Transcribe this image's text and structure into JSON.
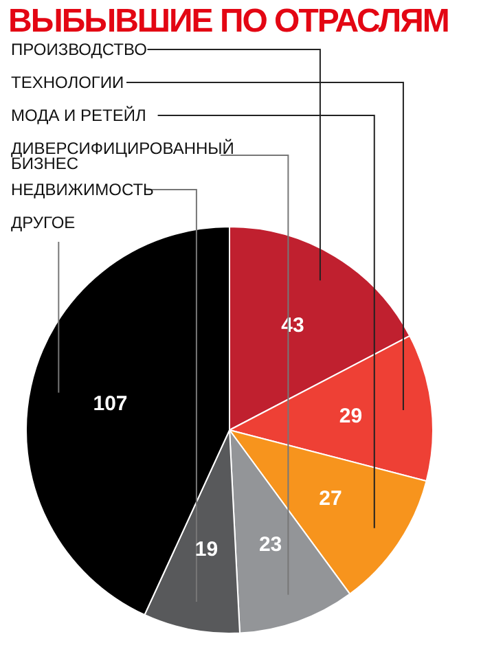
{
  "chart_data": {
    "type": "pie",
    "title": "ВЫБЫВШИЕ ПО ОТРАСЛЯМ",
    "categories": [
      "ПРОИЗВОДСТВО",
      "ТЕХНОЛОГИИ",
      "МОДА И РЕТЕЙЛ",
      "ДИВЕРСИФИЦИРОВАННЫЙ БИЗНЕС",
      "НЕДВИЖИМОСТЬ",
      "ДРУГОЕ"
    ],
    "values": [
      43,
      29,
      27,
      23,
      19,
      107
    ],
    "colors": [
      "#c0202f",
      "#ee4035",
      "#f7941d",
      "#939598",
      "#58595b",
      "#000000"
    ],
    "data_labels": true
  }
}
